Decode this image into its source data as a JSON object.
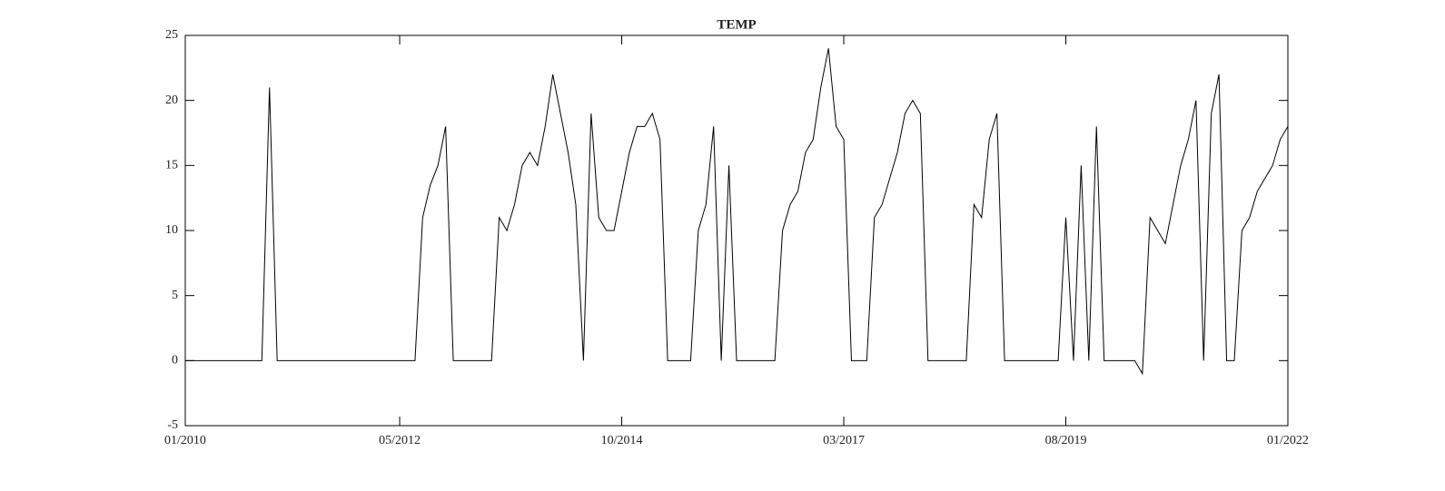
{
  "chart_data": {
    "type": "line",
    "title": "TEMP",
    "x": [
      "2010-01",
      "2010-11",
      "2010-12",
      "2011-01",
      "2012-07",
      "2012-08",
      "2012-09",
      "2012-10",
      "2012-11",
      "2012-12",
      "2013-05",
      "2013-06",
      "2013-07",
      "2013-08",
      "2013-09",
      "2013-10",
      "2013-11",
      "2013-12",
      "2014-01",
      "2014-02",
      "2014-03",
      "2014-04",
      "2014-05",
      "2014-06",
      "2014-07",
      "2014-08",
      "2014-09",
      "2014-10",
      "2014-11",
      "2014-12",
      "2015-01",
      "2015-02",
      "2015-03",
      "2015-04",
      "2015-07",
      "2015-08",
      "2015-09",
      "2015-10",
      "2015-11",
      "2015-12",
      "2016-01",
      "2016-06",
      "2016-07",
      "2016-08",
      "2016-09",
      "2016-10",
      "2016-11",
      "2016-12",
      "2017-01",
      "2017-02",
      "2017-03",
      "2017-04",
      "2017-06",
      "2017-07",
      "2017-08",
      "2017-09",
      "2017-10",
      "2017-11",
      "2017-12",
      "2018-01",
      "2018-02",
      "2018-07",
      "2018-08",
      "2018-09",
      "2018-10",
      "2018-11",
      "2018-12",
      "2019-07",
      "2019-08",
      "2019-09",
      "2019-10",
      "2019-11",
      "2019-12",
      "2020-01",
      "2020-05",
      "2020-06",
      "2020-07",
      "2020-08",
      "2020-09",
      "2020-10",
      "2020-11",
      "2020-12",
      "2021-01",
      "2021-02",
      "2021-03",
      "2021-04",
      "2021-05",
      "2021-06",
      "2021-07",
      "2021-08",
      "2021-09",
      "2021-10",
      "2021-11",
      "2021-12",
      "2022-01"
    ],
    "series": [
      {
        "name": "TEMP",
        "color": "#000000",
        "values": [
          0,
          0,
          21,
          0,
          0,
          11,
          13.5,
          15,
          18,
          0,
          0,
          11,
          10,
          12,
          15,
          16,
          15,
          18,
          22,
          19,
          16,
          12,
          0,
          19,
          11,
          10,
          10,
          13,
          16,
          18,
          18,
          19,
          17,
          0,
          0,
          10,
          12,
          18,
          0,
          15,
          0,
          0,
          10,
          12,
          13,
          16,
          17,
          21,
          24,
          18,
          17,
          0,
          0,
          11,
          12,
          14,
          16,
          19,
          20,
          19,
          0,
          0,
          12,
          11,
          17,
          19,
          0,
          0,
          11,
          0,
          15,
          0,
          18,
          0,
          0,
          -1,
          11,
          10,
          9,
          12,
          15,
          17,
          20,
          0,
          19,
          22,
          0,
          0,
          10,
          11,
          13,
          14,
          15,
          17,
          18
        ]
      }
    ],
    "xlim": [
      "2010-01",
      "2022-01"
    ],
    "xticks": [
      {
        "value": "2010-01",
        "label": "01/2010"
      },
      {
        "value": "2012-05",
        "label": "05/2012"
      },
      {
        "value": "2014-10",
        "label": "10/2014"
      },
      {
        "value": "2017-03",
        "label": "03/2017"
      },
      {
        "value": "2019-08",
        "label": "08/2019"
      },
      {
        "value": "2022-01",
        "label": "01/2022"
      }
    ],
    "ylim": [
      -5,
      25
    ],
    "yticks": [
      -5,
      0,
      5,
      10,
      15,
      20,
      25
    ]
  }
}
